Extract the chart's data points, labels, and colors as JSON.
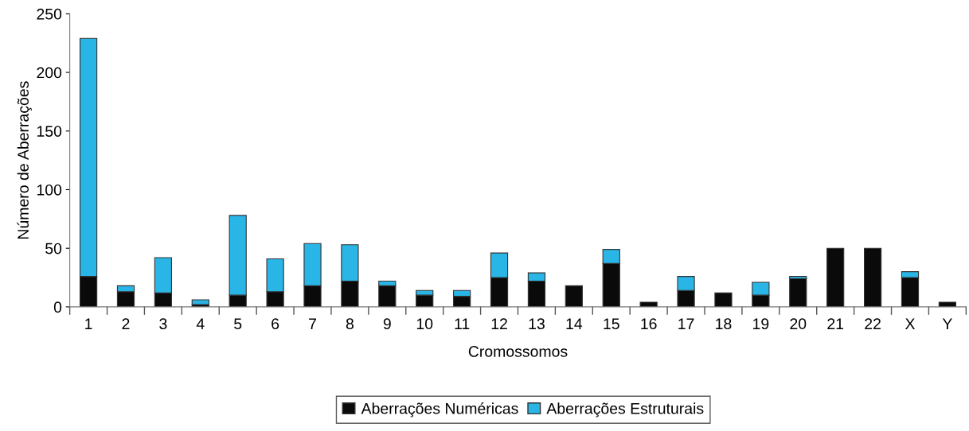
{
  "chart_data": {
    "type": "bar",
    "stacked": true,
    "xlabel": "Cromossomos",
    "ylabel": "Número de Aberrações",
    "categories": [
      "1",
      "2",
      "3",
      "4",
      "5",
      "6",
      "7",
      "8",
      "9",
      "10",
      "11",
      "12",
      "13",
      "14",
      "15",
      "16",
      "17",
      "18",
      "19",
      "20",
      "21",
      "22",
      "X",
      "Y"
    ],
    "series": [
      {
        "name": "Aberrações Numéricas",
        "color": "#0a0a0a",
        "values": [
          26,
          13,
          12,
          2,
          10,
          13,
          18,
          22,
          18,
          10,
          9,
          25,
          22,
          18,
          37,
          4,
          14,
          12,
          10,
          24,
          50,
          50,
          25,
          4
        ]
      },
      {
        "name": "Aberrações Estruturais",
        "color": "#29b6e6",
        "values": [
          203,
          5,
          30,
          4,
          68,
          28,
          36,
          31,
          4,
          4,
          5,
          21,
          7,
          null,
          12,
          null,
          12,
          null,
          11,
          2,
          null,
          null,
          5,
          null
        ]
      }
    ],
    "ylim": [
      0,
      250
    ],
    "yticks": [
      0,
      50,
      100,
      150,
      200,
      250
    ],
    "grid": false,
    "legend": "bottom"
  }
}
